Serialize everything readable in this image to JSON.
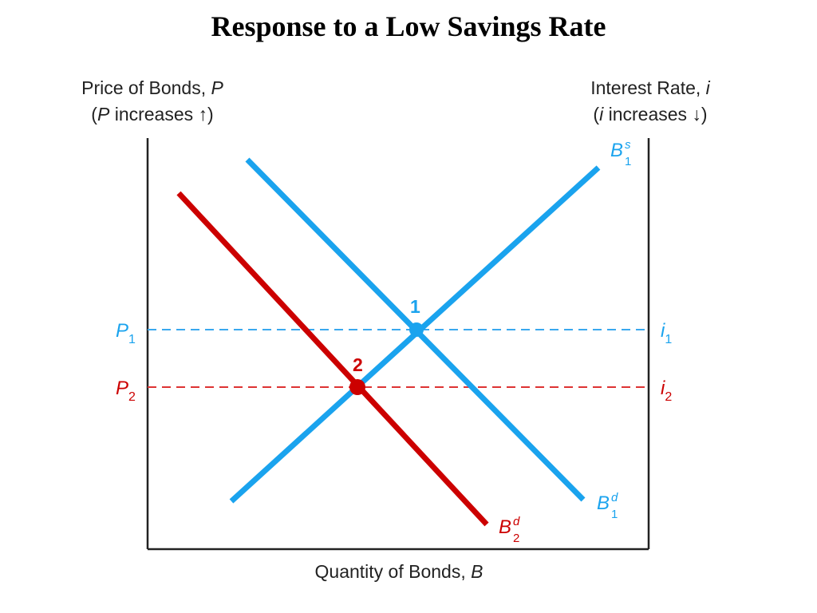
{
  "title": "Response to a Low Savings Rate",
  "axes": {
    "left": {
      "line1_text": "Price of Bonds, ",
      "line1_var": "P",
      "line2_open": "(",
      "line2_var": "P",
      "line2_text": " increases ↑)"
    },
    "right": {
      "line1_text": "Interest Rate, ",
      "line1_var": "i",
      "line2_open": "(",
      "line2_var": "i",
      "line2_text": " increases ↓)"
    },
    "bottom": {
      "text": "Quantity of Bonds, ",
      "var": "B"
    }
  },
  "levels": {
    "p1": {
      "base": "P",
      "sub": "1"
    },
    "p2": {
      "base": "P",
      "sub": "2"
    },
    "i1": {
      "base": "i",
      "sub": "1"
    },
    "i2": {
      "base": "i",
      "sub": "2"
    }
  },
  "curves": {
    "supply1": {
      "base": "B",
      "sup": "s",
      "sub": "1"
    },
    "demand1": {
      "base": "B",
      "sup": "d",
      "sub": "1"
    },
    "demand2": {
      "base": "B",
      "sup": "d",
      "sub": "2"
    }
  },
  "points": {
    "eq1": "1",
    "eq2": "2"
  },
  "colors": {
    "blue": "#1aa3ee",
    "red": "#cc0000",
    "axis": "#222222",
    "dash_blue": "#3aa8ee",
    "dash_red": "#dd3333"
  }
}
